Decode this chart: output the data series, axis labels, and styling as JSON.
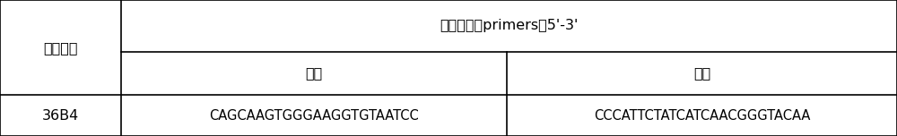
{
  "col1_header": "基因名称",
  "col2_header": "引物序列（primers）5'-3'",
  "col3_header": "上游",
  "col4_header": "下游",
  "row1_col1": "36B4",
  "row1_col2": "CAGCAAGTGGGAAGGTGTAATCC",
  "row1_col3": "CCCATTCTATCATCAACGGGTACAA",
  "bg_color": "#ffffff",
  "line_color": "#000000",
  "text_color": "#000000",
  "font_size": 11.5,
  "seq_font_size": 10.5,
  "c0": 0.0,
  "c1": 0.135,
  "c2": 0.565,
  "c3": 1.0,
  "r0": 1.0,
  "r1": 0.62,
  "r2": 0.3,
  "r3": 0.0
}
